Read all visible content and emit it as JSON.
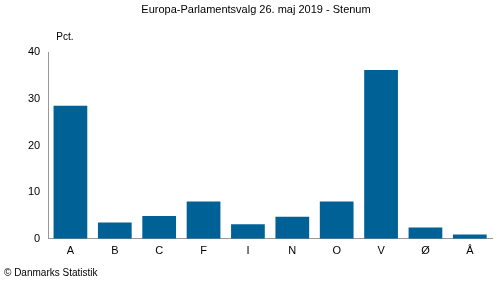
{
  "chart_data": {
    "type": "bar",
    "title": "Europa-Parlamentsvalg 26. maj 2019 - Stenum",
    "ylabel": "Pct.",
    "annotation": "© Danmarks Statistik",
    "categories": [
      "A",
      "B",
      "C",
      "F",
      "I",
      "N",
      "O",
      "V",
      "Ø",
      "Å"
    ],
    "values": [
      28.5,
      3.5,
      4.9,
      8.0,
      3.1,
      4.7,
      8.0,
      36.2,
      2.4,
      0.9
    ],
    "color": "#006196",
    "ylim": [
      0,
      40
    ],
    "yticks": [
      0,
      10,
      20,
      30,
      40
    ],
    "grid": false
  }
}
